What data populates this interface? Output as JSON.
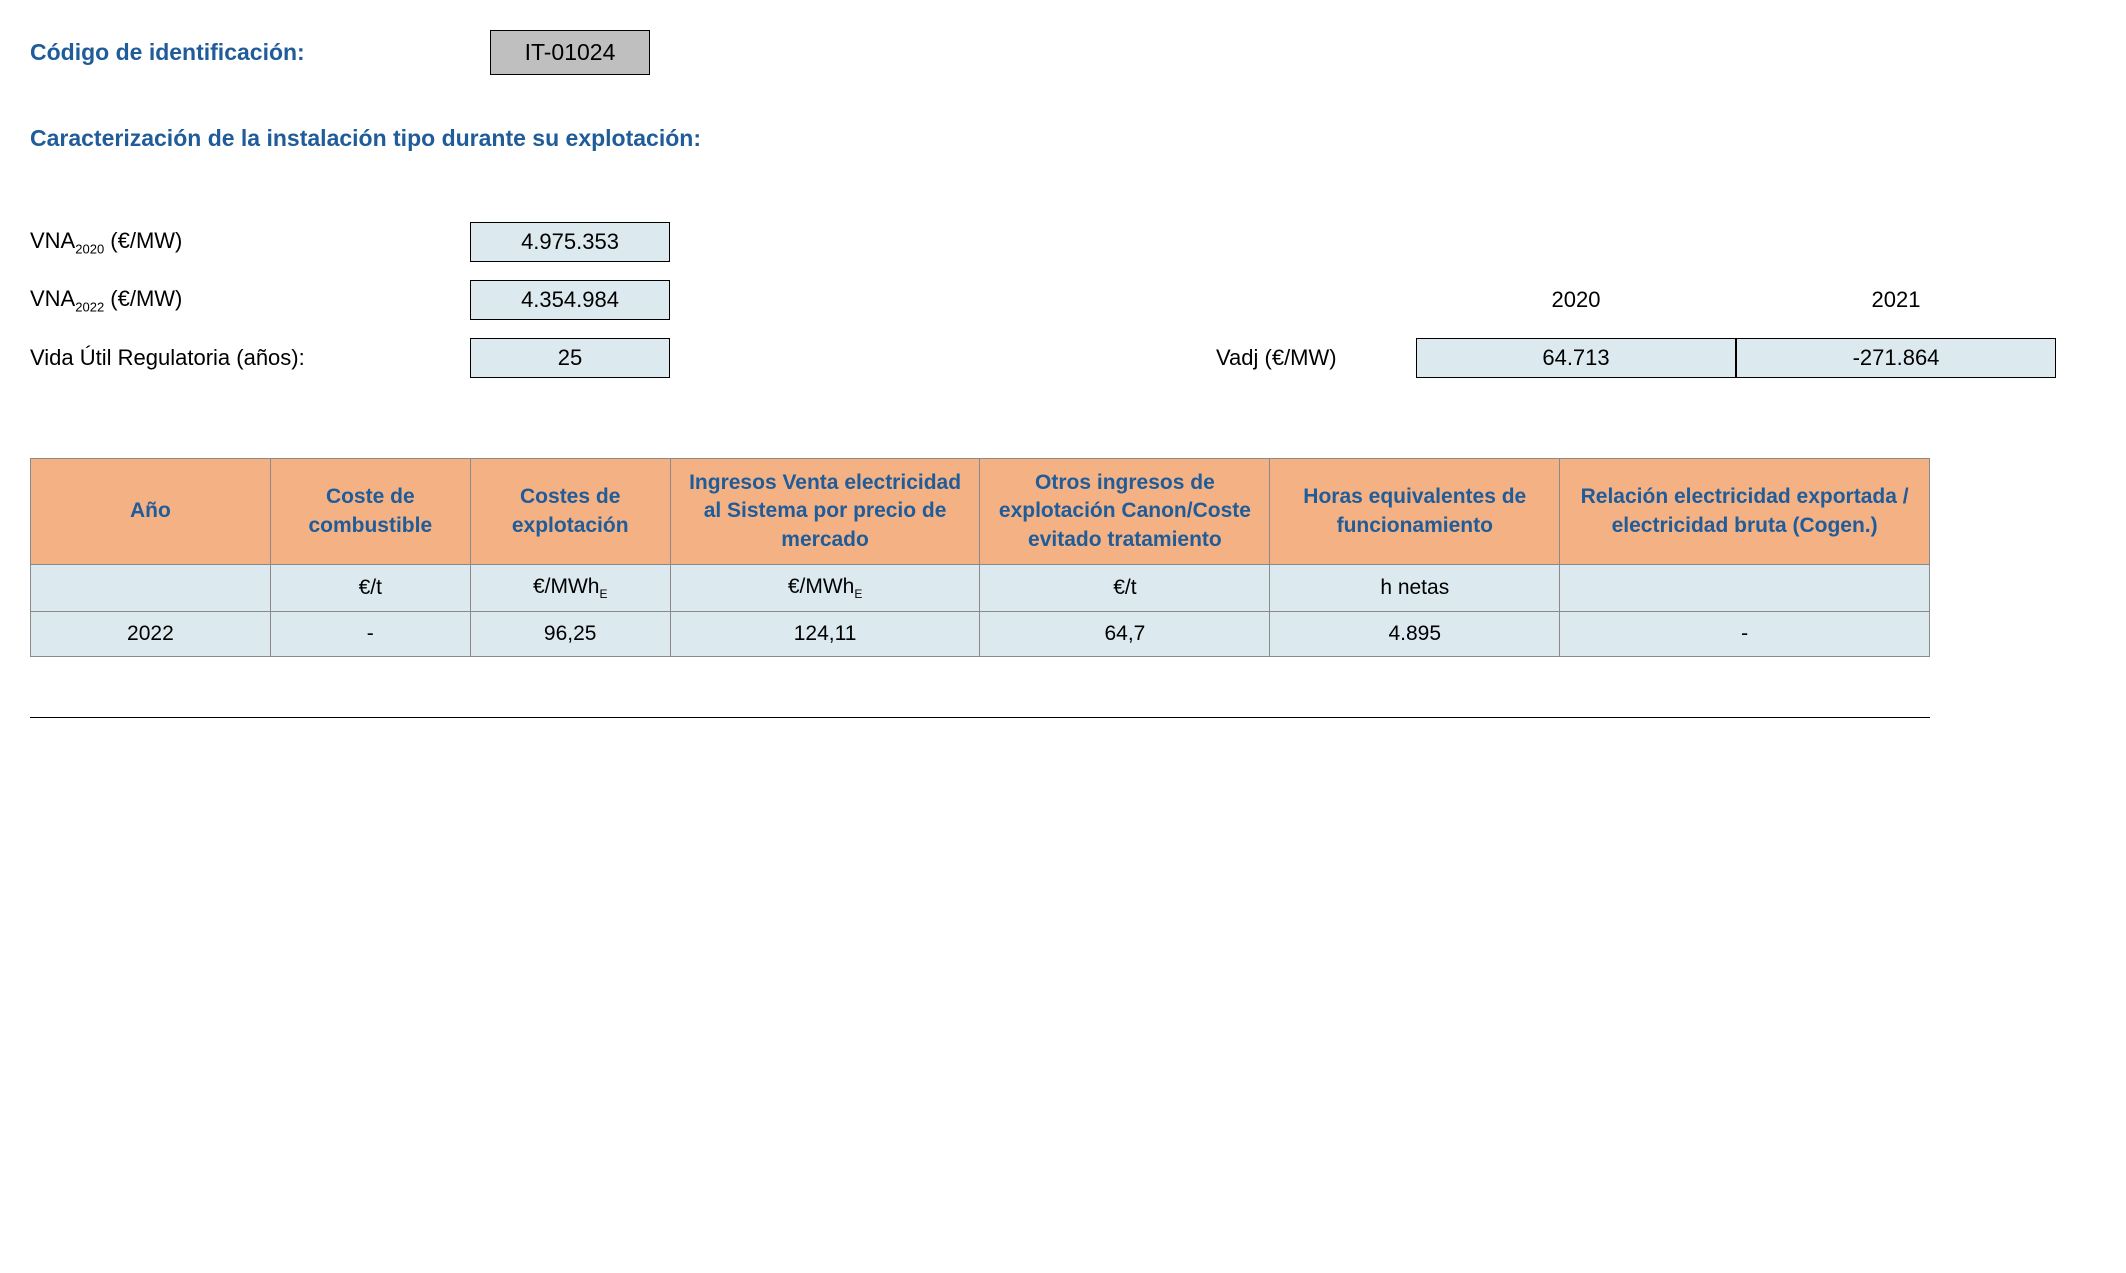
{
  "header": {
    "code_label": "Código de identificación:",
    "code_value": "IT-01024"
  },
  "section_title": "Caracterización de la instalación tipo durante su explotación:",
  "params": {
    "vna2020_label_pre": "VNA",
    "vna2020_label_sub": "2020",
    "vna2020_label_post": " (€/MW)",
    "vna2020_value": "4.975.353",
    "vna2022_label_pre": "VNA",
    "vna2022_label_sub": "2022",
    "vna2022_label_post": " (€/MW)",
    "vna2022_value": "4.354.984",
    "vida_label": "Vida Útil Regulatoria (años):",
    "vida_value": "25"
  },
  "vadj": {
    "year1": "2020",
    "year2": "2021",
    "label": "Vadj (€/MW)",
    "val1": "64.713",
    "val2": "-271.864"
  },
  "table": {
    "headers": {
      "ano": "Año",
      "comb": "Coste de combustible",
      "expl": "Costes de explotación",
      "ing": "Ingresos Venta electricidad al Sistema por precio de mercado",
      "otros": "Otros ingresos de explotación Canon/Coste evitado tratamiento",
      "horas": "Horas equivalentes de funcionamiento",
      "rel": "Relación electricidad exportada / electricidad bruta (Cogen.)"
    },
    "units": {
      "ano": "",
      "comb": "€/t",
      "expl_pre": "€/MWh",
      "expl_sub": "E",
      "ing_pre": "€/MWh",
      "ing_sub": "E",
      "otros": "€/t",
      "horas": "h netas",
      "rel": ""
    },
    "row": {
      "ano": "2022",
      "comb": "-",
      "expl": "96,25",
      "ing": "124,11",
      "otros": "64,7",
      "horas": "4.895",
      "rel": "-"
    }
  },
  "colors": {
    "header_bg": "#f4b183",
    "cell_bg": "#dceaf0",
    "title_color": "#1f5c99",
    "code_bg": "#bfbfbf",
    "border": "#8a8a8a"
  }
}
